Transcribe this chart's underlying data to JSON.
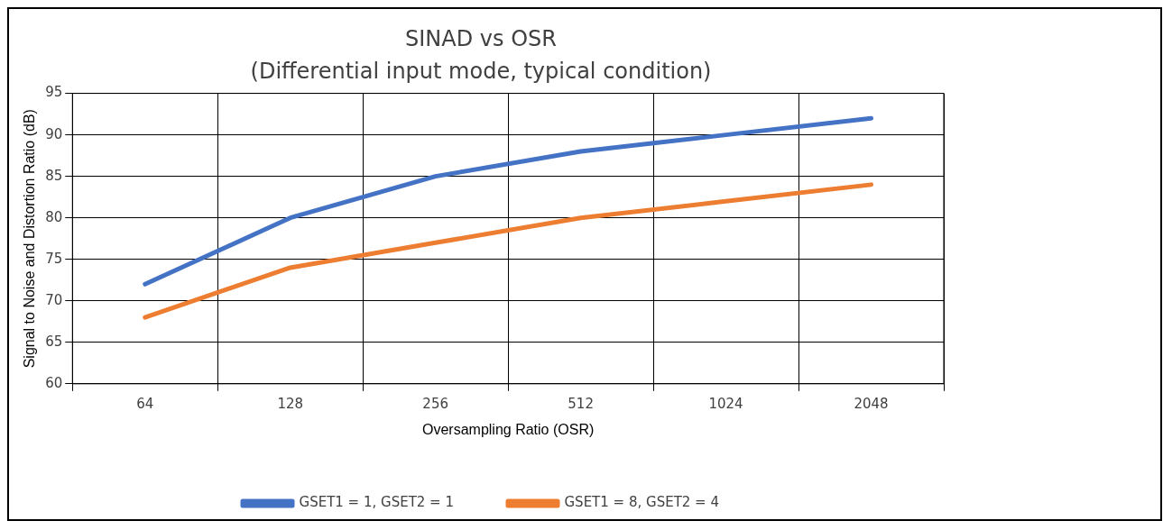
{
  "chart_data": {
    "type": "line",
    "title": "SINAD vs OSR",
    "subtitle": "(Differential input mode, typical condition)",
    "xlabel": "Oversampling Ratio (OSR)",
    "ylabel": "Signal to Noise and Distortion Ratio (dB)",
    "categories": [
      "64",
      "128",
      "256",
      "512",
      "1024",
      "2048"
    ],
    "series": [
      {
        "name": "GSET1 = 1, GSET2 = 1",
        "color": "#4472c4",
        "values": [
          72,
          80,
          85,
          88,
          90,
          92
        ]
      },
      {
        "name": "GSET1 = 8, GSET2 = 4",
        "color": "#ed7d31",
        "values": [
          68,
          74,
          77,
          80,
          82,
          84
        ]
      }
    ],
    "ylim": [
      60,
      95
    ],
    "yticks": [
      60,
      65,
      70,
      75,
      80,
      85,
      90,
      95
    ],
    "grid": true,
    "legend": "bottom",
    "marker": "none",
    "line_style": "solid"
  }
}
